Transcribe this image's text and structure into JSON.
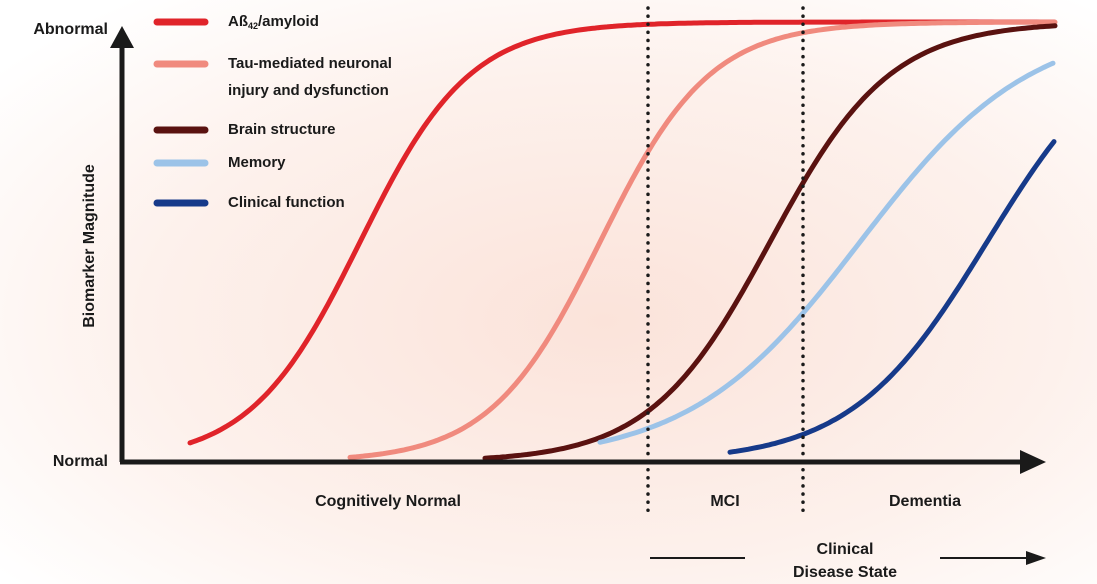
{
  "y_axis": {
    "title": "Biomarker Magnitude",
    "top_label": "Abnormal",
    "bottom_label": "Normal"
  },
  "legend": [
    {
      "parts": [
        "Aß",
        "42",
        "/amyloid"
      ]
    },
    {
      "lines": [
        "Tau-mediated neuronal",
        "injury and dysfunction"
      ]
    },
    {
      "label": "Brain structure"
    },
    {
      "label": "Memory"
    },
    {
      "label": "Clinical function"
    }
  ],
  "stages": [
    "Cognitively Normal",
    "MCI",
    "Dementia"
  ],
  "footer": [
    "Clinical",
    "Disease State"
  ]
}
